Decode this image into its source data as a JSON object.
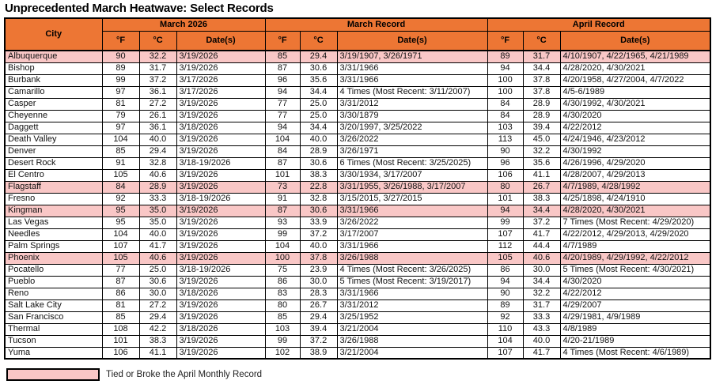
{
  "title": "Unprecedented March Heatwave: Select Records",
  "colors": {
    "header_bg": "#ED7634",
    "highlight_bg": "#F9C7C6",
    "border": "#000000"
  },
  "table": {
    "city_header": "City",
    "sections": [
      {
        "label": "March 2026"
      },
      {
        "label": "March Record"
      },
      {
        "label": "April Record"
      }
    ],
    "sub_headers": [
      "°F",
      "°C",
      "Date(s)"
    ],
    "rows": [
      {
        "city": "Albuquerque",
        "highlight": true,
        "march2026": [
          "90",
          "32.2",
          "3/19/2026"
        ],
        "march_record": [
          "85",
          "29.4",
          "3/19/1907, 3/26/1971"
        ],
        "april_record": [
          "89",
          "31.7",
          "4/10/1907, 4/22/1965, 4/21/1989"
        ]
      },
      {
        "city": "Bishop",
        "highlight": false,
        "march2026": [
          "89",
          "31.7",
          "3/19/2026"
        ],
        "march_record": [
          "87",
          "30.6",
          "3/31/1966"
        ],
        "april_record": [
          "94",
          "34.4",
          "4/28/2020, 4/30/2021"
        ]
      },
      {
        "city": "Burbank",
        "highlight": false,
        "march2026": [
          "99",
          "37.2",
          "3/17/2026"
        ],
        "march_record": [
          "96",
          "35.6",
          "3/31/1966"
        ],
        "april_record": [
          "100",
          "37.8",
          "4/20/1958, 4/27/2004, 4/7/2022"
        ]
      },
      {
        "city": "Camarillo",
        "highlight": false,
        "march2026": [
          "97",
          "36.1",
          "3/17/2026"
        ],
        "march_record": [
          "94",
          "34.4",
          "4 Times (Most Recent: 3/11/2007)"
        ],
        "april_record": [
          "100",
          "37.8",
          "4/5-6/1989"
        ]
      },
      {
        "city": "Casper",
        "highlight": false,
        "march2026": [
          "81",
          "27.2",
          "3/19/2026"
        ],
        "march_record": [
          "77",
          "25.0",
          "3/31/2012"
        ],
        "april_record": [
          "84",
          "28.9",
          "4/30/1992, 4/30/2021"
        ]
      },
      {
        "city": "Cheyenne",
        "highlight": false,
        "march2026": [
          "79",
          "26.1",
          "3/19/2026"
        ],
        "march_record": [
          "77",
          "25.0",
          "3/30/1879"
        ],
        "april_record": [
          "84",
          "28.9",
          "4/30/2020"
        ]
      },
      {
        "city": "Daggett",
        "highlight": false,
        "march2026": [
          "97",
          "36.1",
          "3/18/2026"
        ],
        "march_record": [
          "94",
          "34.4",
          "3/20/1997, 3/25/2022"
        ],
        "april_record": [
          "103",
          "39.4",
          "4/22/2012"
        ]
      },
      {
        "city": "Death Valley",
        "highlight": false,
        "march2026": [
          "104",
          "40.0",
          "3/19/2026"
        ],
        "march_record": [
          "104",
          "40.0",
          "3/26/2022"
        ],
        "april_record": [
          "113",
          "45.0",
          "4/24/1946, 4/23/2012"
        ]
      },
      {
        "city": "Denver",
        "highlight": false,
        "march2026": [
          "85",
          "29.4",
          "3/19/2026"
        ],
        "march_record": [
          "84",
          "28.9",
          "3/26/1971"
        ],
        "april_record": [
          "90",
          "32.2",
          "4/30/1992"
        ]
      },
      {
        "city": "Desert Rock",
        "highlight": false,
        "march2026": [
          "91",
          "32.8",
          "3/18-19/2026"
        ],
        "march_record": [
          "87",
          "30.6",
          "6 Times (Most Recent: 3/25/2025)"
        ],
        "april_record": [
          "96",
          "35.6",
          "4/26/1996, 4/29/2020"
        ]
      },
      {
        "city": "El Centro",
        "highlight": false,
        "march2026": [
          "105",
          "40.6",
          "3/19/2026"
        ],
        "march_record": [
          "101",
          "38.3",
          "3/30/1934, 3/17/2007"
        ],
        "april_record": [
          "106",
          "41.1",
          "4/28/2007, 4/29/2013"
        ]
      },
      {
        "city": "Flagstaff",
        "highlight": true,
        "march2026": [
          "84",
          "28.9",
          "3/19/2026"
        ],
        "march_record": [
          "73",
          "22.8",
          "3/31/1955, 3/26/1988, 3/17/2007"
        ],
        "april_record": [
          "80",
          "26.7",
          "4/7/1989, 4/28/1992"
        ]
      },
      {
        "city": "Fresno",
        "highlight": false,
        "march2026": [
          "92",
          "33.3",
          "3/18-19/2026"
        ],
        "march_record": [
          "91",
          "32.8",
          "3/15/2015, 3/27/2015"
        ],
        "april_record": [
          "101",
          "38.3",
          "4/25/1898, 4/24/1910"
        ]
      },
      {
        "city": "Kingman",
        "highlight": true,
        "march2026": [
          "95",
          "35.0",
          "3/19/2026"
        ],
        "march_record": [
          "87",
          "30.6",
          "3/31/1966"
        ],
        "april_record": [
          "94",
          "34.4",
          "4/28/2020, 4/30/2021"
        ]
      },
      {
        "city": "Las Vegas",
        "highlight": false,
        "march2026": [
          "95",
          "35.0",
          "3/19/2026"
        ],
        "march_record": [
          "93",
          "33.9",
          "3/26/2022"
        ],
        "april_record": [
          "99",
          "37.2",
          "7 Times (Most Recent: 4/29/2020)"
        ]
      },
      {
        "city": "Needles",
        "highlight": false,
        "march2026": [
          "104",
          "40.0",
          "3/19/2026"
        ],
        "march_record": [
          "99",
          "37.2",
          "3/17/2007"
        ],
        "april_record": [
          "107",
          "41.7",
          "4/22/2012, 4/29/2013, 4/29/2020"
        ]
      },
      {
        "city": "Palm Springs",
        "highlight": false,
        "march2026": [
          "107",
          "41.7",
          "3/19/2026"
        ],
        "march_record": [
          "104",
          "40.0",
          "3/31/1966"
        ],
        "april_record": [
          "112",
          "44.4",
          "4/7/1989"
        ]
      },
      {
        "city": "Phoenix",
        "highlight": true,
        "march2026": [
          "105",
          "40.6",
          "3/19/2026"
        ],
        "march_record": [
          "100",
          "37.8",
          "3/26/1988"
        ],
        "april_record": [
          "105",
          "40.6",
          "4/20/1989, 4/29/1992, 4/22/2012"
        ]
      },
      {
        "city": "Pocatello",
        "highlight": false,
        "march2026": [
          "77",
          "25.0",
          "3/18-19/2026"
        ],
        "march_record": [
          "75",
          "23.9",
          "4 Times (Most Recent: 3/26/2025)"
        ],
        "april_record": [
          "86",
          "30.0",
          "5 Times (Most Recent: 4/30/2021)"
        ]
      },
      {
        "city": "Pueblo",
        "highlight": false,
        "march2026": [
          "87",
          "30.6",
          "3/19/2026"
        ],
        "march_record": [
          "86",
          "30.0",
          "5 Times (Most Recent: 3/19/2017)"
        ],
        "april_record": [
          "94",
          "34.4",
          "4/30/2020"
        ]
      },
      {
        "city": "Reno",
        "highlight": false,
        "march2026": [
          "86",
          "30.0",
          "3/18/2026"
        ],
        "march_record": [
          "83",
          "28.3",
          "3/31/1966"
        ],
        "april_record": [
          "90",
          "32.2",
          "4/22/2012"
        ]
      },
      {
        "city": "Salt Lake City",
        "highlight": false,
        "march2026": [
          "81",
          "27.2",
          "3/19/2026"
        ],
        "march_record": [
          "80",
          "26.7",
          "3/31/2012"
        ],
        "april_record": [
          "89",
          "31.7",
          "4/29/2007"
        ]
      },
      {
        "city": "San Francisco",
        "highlight": false,
        "march2026": [
          "85",
          "29.4",
          "3/19/2026"
        ],
        "march_record": [
          "85",
          "29.4",
          "3/25/1952"
        ],
        "april_record": [
          "92",
          "33.3",
          "4/29/1981, 4/9/1989"
        ]
      },
      {
        "city": "Thermal",
        "highlight": false,
        "march2026": [
          "108",
          "42.2",
          "3/18/2026"
        ],
        "march_record": [
          "103",
          "39.4",
          "3/21/2004"
        ],
        "april_record": [
          "110",
          "43.3",
          "4/8/1989"
        ]
      },
      {
        "city": "Tucson",
        "highlight": false,
        "march2026": [
          "101",
          "38.3",
          "3/19/2026"
        ],
        "march_record": [
          "99",
          "37.2",
          "3/26/1988"
        ],
        "april_record": [
          "104",
          "40.0",
          "4/20-21/1989"
        ]
      },
      {
        "city": "Yuma",
        "highlight": false,
        "march2026": [
          "106",
          "41.1",
          "3/19/2026"
        ],
        "march_record": [
          "102",
          "38.9",
          "3/21/2004"
        ],
        "april_record": [
          "107",
          "41.7",
          "4 Times (Most Recent: 4/6/1989)"
        ]
      }
    ]
  },
  "legend": {
    "label": "Tied or Broke the April Monthly Record"
  }
}
